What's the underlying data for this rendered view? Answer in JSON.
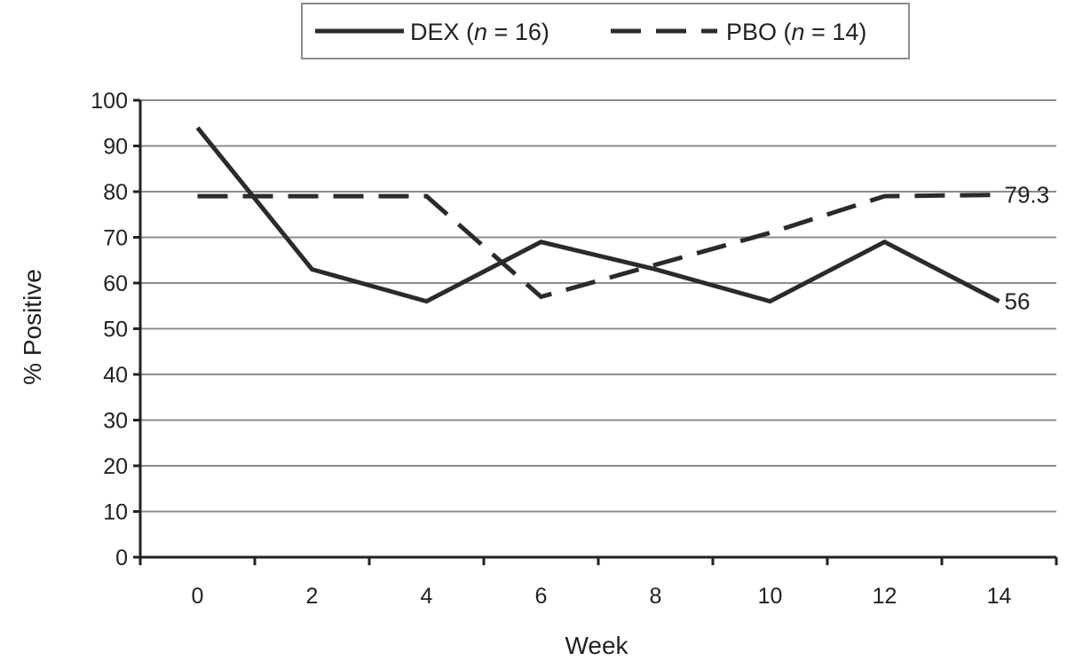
{
  "chart_data": {
    "type": "line",
    "xlabel": "Week",
    "ylabel": "% Positive",
    "x": [
      0,
      2,
      4,
      6,
      8,
      10,
      12,
      14
    ],
    "xticks": [
      "0",
      "2",
      "4",
      "6",
      "8",
      "10",
      "12",
      "14"
    ],
    "yticks": [
      "0",
      "10",
      "20",
      "30",
      "40",
      "50",
      "60",
      "70",
      "80",
      "90",
      "100"
    ],
    "ylim": [
      0,
      100
    ],
    "grid": true,
    "legend_position": "top-center",
    "series": [
      {
        "name": "DEX (n = 16)",
        "name_prefix": "DEX (",
        "name_italic": "n",
        "name_suffix": " = 16)",
        "style": "solid",
        "color": "#2b2b2b",
        "values": [
          94,
          63,
          56,
          69,
          63,
          56,
          69,
          56
        ],
        "end_label": "56"
      },
      {
        "name": "PBO (n = 14)",
        "name_prefix": "PBO (",
        "name_italic": "n",
        "name_suffix": " = 14)",
        "style": "dashed",
        "color": "#2b2b2b",
        "values": [
          79,
          79,
          79,
          57,
          64,
          71,
          79,
          79.3
        ],
        "end_label": "79.3"
      }
    ]
  }
}
